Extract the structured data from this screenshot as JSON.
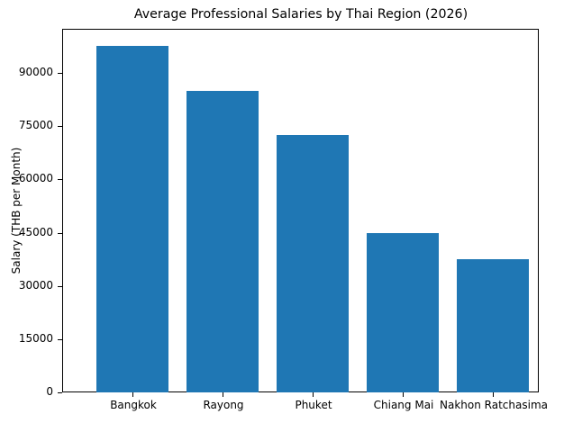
{
  "chart_data": {
    "type": "bar",
    "title": "Average Professional Salaries by Thai Region (2026)",
    "xlabel": "",
    "ylabel": "Salary (THB per Month)",
    "categories": [
      "Bangkok",
      "Rayong",
      "Phuket",
      "Chiang Mai",
      "Nakhon Ratchasima"
    ],
    "values": [
      97500,
      85000,
      72500,
      45000,
      37500
    ],
    "ylim": [
      0,
      102000
    ],
    "yticks": [
      "0",
      "15000",
      "30000",
      "45000",
      "60000",
      "75000",
      "90000"
    ],
    "grid": false,
    "legend": null,
    "bar_color": "#1f77b4"
  }
}
